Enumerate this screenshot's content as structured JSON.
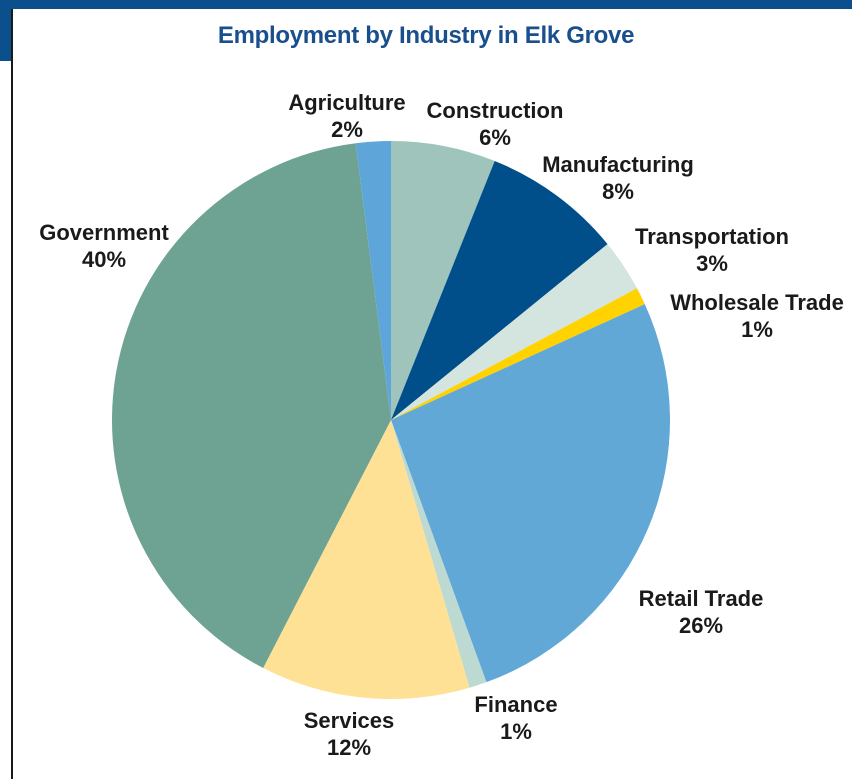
{
  "chart_data": {
    "type": "pie",
    "title": "Employment by Industry in Elk Grove",
    "slices": [
      {
        "label": "Construction",
        "pct_label": "6%",
        "value": 6,
        "color": "#9fc4bb"
      },
      {
        "label": "Manufacturing",
        "pct_label": "8%",
        "value": 8,
        "color": "#004f8a"
      },
      {
        "label": "Transportation",
        "pct_label": "3%",
        "value": 3,
        "color": "#d4e5e0"
      },
      {
        "label": "Wholesale Trade",
        "pct_label": "1%",
        "value": 1,
        "color": "#ffd200"
      },
      {
        "label": "Retail Trade",
        "pct_label": "26%",
        "value": 26,
        "color": "#62a8d6"
      },
      {
        "label": "Finance",
        "pct_label": "1%",
        "value": 1,
        "color": "#bcd9d2"
      },
      {
        "label": "Services",
        "pct_label": "12%",
        "value": 12,
        "color": "#ffe196"
      },
      {
        "label": "Government",
        "pct_label": "40%",
        "value": 40,
        "color": "#6ea394"
      },
      {
        "label": "Agriculture",
        "pct_label": "2%",
        "value": 2,
        "color": "#5ea6d9"
      }
    ]
  },
  "colors": {
    "accent": "#0b4f8c",
    "title": "#1a4f8e"
  }
}
